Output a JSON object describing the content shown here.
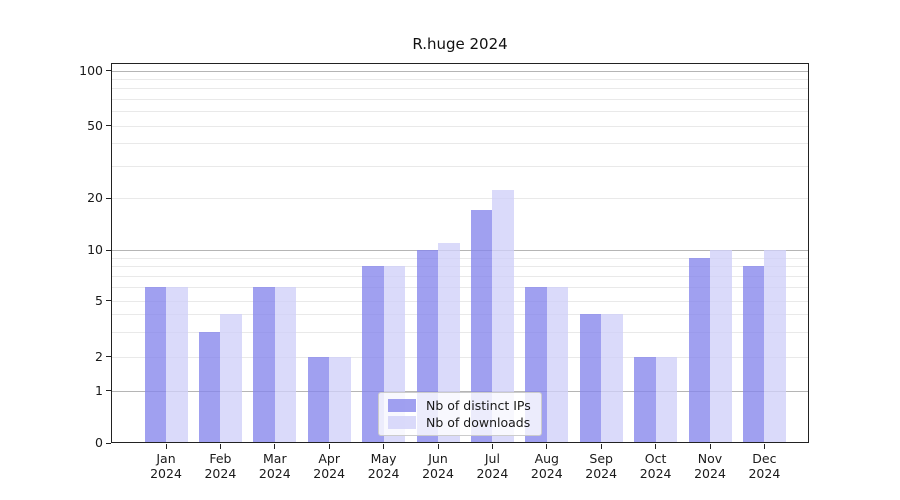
{
  "chart_data": {
    "type": "bar",
    "title": "R.huge 2024",
    "months": [
      "Jan",
      "Feb",
      "Mar",
      "Apr",
      "May",
      "Jun",
      "Jul",
      "Aug",
      "Sep",
      "Oct",
      "Nov",
      "Dec"
    ],
    "year": "2024",
    "series": [
      {
        "name": "Nb of distinct IPs",
        "color": "#8585ec",
        "values": [
          6,
          3,
          6,
          2,
          8,
          10,
          17,
          6,
          4,
          2,
          9,
          8
        ]
      },
      {
        "name": "Nb of downloads",
        "color": "#cfcff9",
        "values": [
          6,
          4,
          6,
          2,
          8,
          11,
          22,
          6,
          4,
          2,
          10,
          10
        ]
      }
    ],
    "bar_opacity": 0.78,
    "yticks": [
      0,
      1,
      2,
      5,
      10,
      20,
      50,
      100
    ],
    "grid_major": [
      1,
      10,
      100
    ],
    "grid_minor": [
      2,
      3,
      4,
      5,
      6,
      7,
      8,
      9,
      20,
      30,
      40,
      50,
      60,
      70,
      80,
      90
    ],
    "ylim": [
      0,
      110
    ],
    "scale": "log above 1, linear 0-1",
    "grid": "horizontal",
    "legend_position": "lower center",
    "colors": {
      "grid_major": "#b5b5b5",
      "grid_minor": "#e9e9e9",
      "spine": "#222222",
      "text": "#1a1a1a"
    }
  }
}
